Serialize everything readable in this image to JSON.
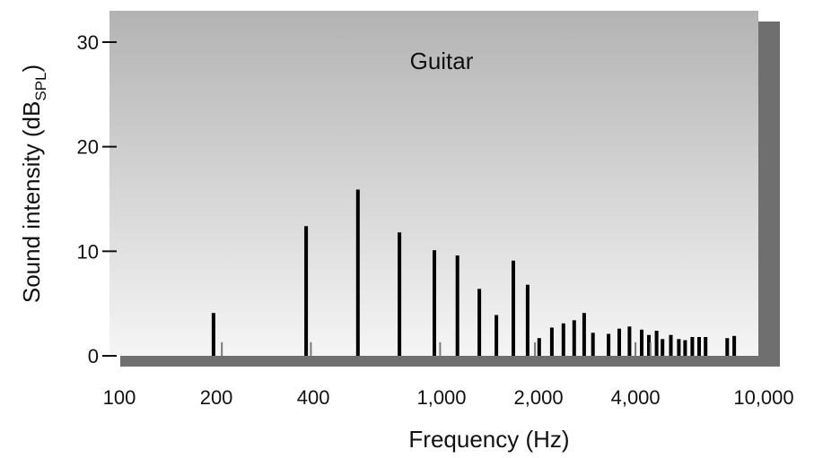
{
  "chart_data": {
    "type": "bar",
    "title": "Guitar",
    "xlabel": "Frequency (Hz)",
    "ylabel": {
      "main": "Sound intensity (dB",
      "sub": "SPL",
      "close": ")"
    },
    "x_scale": "log",
    "xlim": [
      100,
      10000
    ],
    "ylim": [
      0,
      33
    ],
    "x_ticks": [
      {
        "value": 100,
        "label": "100"
      },
      {
        "value": 200,
        "label": "200"
      },
      {
        "value": 400,
        "label": "400"
      },
      {
        "value": 1000,
        "label": "1,000"
      },
      {
        "value": 2000,
        "label": "2,000"
      },
      {
        "value": 4000,
        "label": "4,000"
      },
      {
        "value": 10000,
        "label": "10,000"
      }
    ],
    "y_ticks": [
      {
        "value": 0,
        "label": "0"
      },
      {
        "value": 10,
        "label": "10"
      },
      {
        "value": 20,
        "label": "20"
      },
      {
        "value": 30,
        "label": "30"
      }
    ],
    "grid": false,
    "series": [
      {
        "x": [
          196,
          380,
          550,
          740,
          950,
          1120,
          1310,
          1480,
          1670,
          1850,
          2010,
          2200,
          2390,
          2580,
          2770,
          2950,
          3300,
          3560,
          3830,
          4180,
          4400,
          4650,
          4850,
          5150,
          5450,
          5700,
          6000,
          6300,
          6600,
          7700,
          8100
        ],
        "values": [
          4.1,
          12.4,
          15.9,
          11.8,
          10.1,
          9.6,
          6.4,
          3.9,
          9.1,
          6.8,
          1.7,
          2.7,
          3.1,
          3.4,
          4.1,
          2.2,
          2.1,
          2.6,
          2.8,
          2.5,
          2.0,
          2.4,
          1.6,
          2.0,
          1.6,
          1.5,
          1.8,
          1.8,
          1.8,
          1.7,
          1.9
        ]
      },
      {
        "x": [
          208,
          393,
          990,
          1950,
          4000,
          4450
        ],
        "values": [
          1.3,
          1.3,
          1.3,
          1.3,
          1.3,
          1.3
        ]
      }
    ],
    "colors": {
      "plot_background_top": "#b3b3b3",
      "plot_background_bottom": "#f5f5f5",
      "shadow": "#6f6f6f",
      "bar": "#000000",
      "minor_bar": "#7a7a7a"
    }
  }
}
